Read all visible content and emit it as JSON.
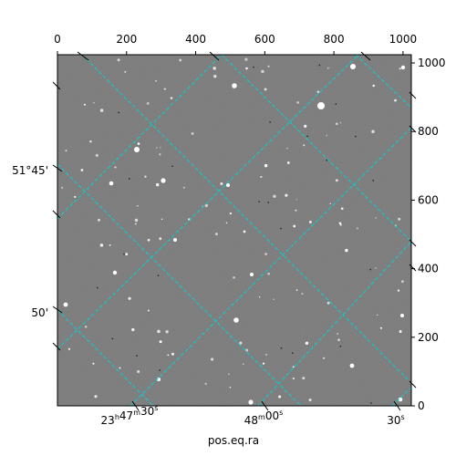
{
  "chart_data": {
    "type": "image",
    "pixel_axes": {
      "x_range": [
        0,
        1024
      ],
      "y_range": [
        0,
        1024
      ],
      "x_ticks": [
        0,
        200,
        400,
        600,
        800,
        1000
      ],
      "y_ticks": [
        0,
        200,
        400,
        600,
        800,
        1000
      ],
      "x_tick_labels": [
        "0",
        "200",
        "400",
        "600",
        "800",
        "1000"
      ],
      "y_tick_labels": [
        "0",
        "200",
        "400",
        "600",
        "800",
        "1000"
      ]
    },
    "world_axes": {
      "xlabel": "pos.eq.ra",
      "ra_tick_labels": [
        {
          "h": "23",
          "m": "47",
          "s": "30"
        },
        {
          "h": "",
          "m": "48",
          "s": "00"
        },
        {
          "h": "",
          "m": "",
          "s": "30"
        }
      ],
      "dec_tick_labels": [
        "51°45'",
        "50'"
      ]
    },
    "grid": true,
    "grid_color": "#00d4d4",
    "image_colormap": "gray"
  }
}
